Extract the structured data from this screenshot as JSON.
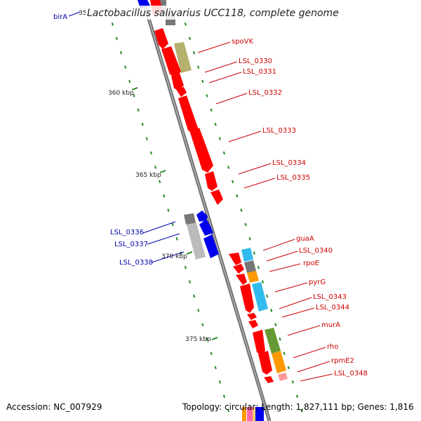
{
  "title": "Lactobacillus salivarius UCC118, complete genome",
  "cut_tick_label": "35",
  "ticks": [
    "360 kbp",
    "365 kbp",
    "370 kbp",
    "375 kbp"
  ],
  "top_left_gene": "birA",
  "right_genes": [
    "spoVK",
    "LSL_0330",
    "LSL_0331",
    "LSL_0332",
    "LSL_0333",
    "LSL_0334",
    "LSL_0335",
    "guaA",
    "LSL_0340",
    "rpoE",
    "pyrG",
    "LSL_0343",
    "LSL_0344",
    "murA",
    "rho",
    "rpmE2",
    "LSL_0348"
  ],
  "left_genes": [
    "LSL_0336",
    "LSL_0337",
    "LSL_0338"
  ],
  "footer": {
    "accession": "Accession: NC_007929",
    "summary": "Topology: circular; Length: 1,827,111 bp; Genes: 1,816"
  },
  "colors": {
    "forward_gene": "#ff0000",
    "reverse_gene": "#0000ee",
    "right_label": "#cc0000",
    "left_label": "#0000aa",
    "backbone": "#888888",
    "gc_ticks": "#228822",
    "cog_olive": "#b5b06e",
    "cog_gray": "#777777",
    "cog_cyan": "#33bbee",
    "cog_orange": "#ff9900",
    "cog_green": "#669933",
    "cog_pink": "#ff9999",
    "cog_lightgray": "#bbbbbb"
  }
}
